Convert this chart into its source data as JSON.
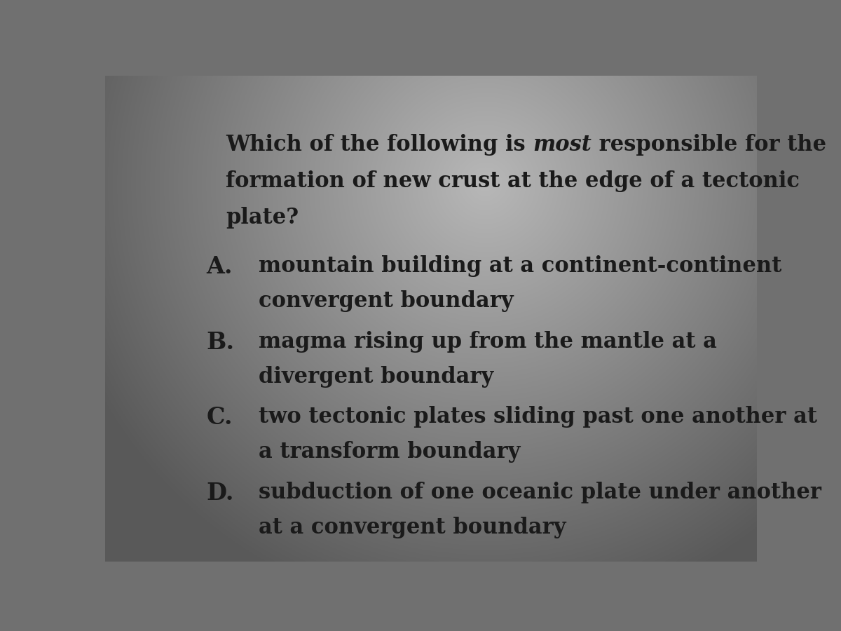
{
  "bg_color_center": "#a8a8a8",
  "bg_color_edge": "#5a5a5a",
  "text_color": "#1a1a1a",
  "question_line1_normal1": "Which of the following is ",
  "question_line1_italic": "most",
  "question_line1_normal2": " responsible for the",
  "question_line2": "formation of new crust at the edge of a tectonic",
  "question_line3": "plate?",
  "options": [
    {
      "label": "A.",
      "text1": "mountain building at a continent-continent",
      "text2": "convergent boundary"
    },
    {
      "label": "B.",
      "text1": "magma rising up from the mantle at a",
      "text2": "divergent boundary"
    },
    {
      "label": "C.",
      "text1": "two tectonic plates sliding past one another at",
      "text2": "a transform boundary"
    },
    {
      "label": "D.",
      "text1": "subduction of one oceanic plate under another",
      "text2": "at a convergent boundary"
    }
  ],
  "question_fontsize": 22,
  "option_label_fontsize": 24,
  "option_text_fontsize": 22,
  "font_family": "DejaVu Serif"
}
